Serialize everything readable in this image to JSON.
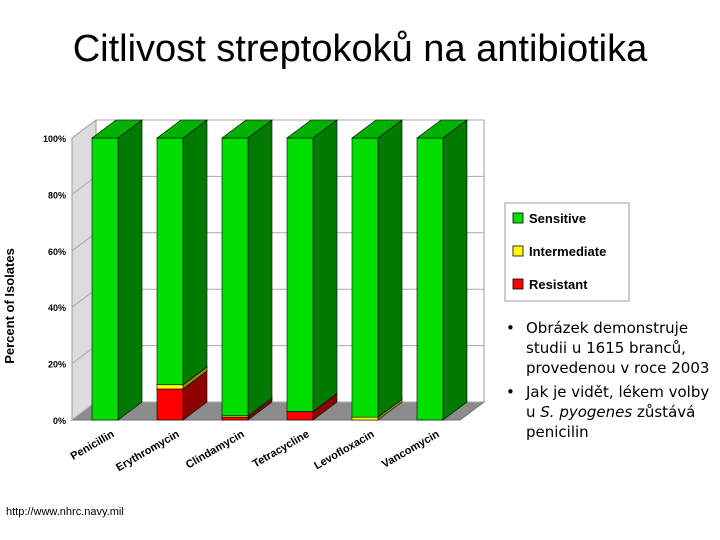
{
  "slide": {
    "title": "Citlivost streptokoků na antibiotika",
    "bullets": [
      {
        "pre": "Obrázek demonstruje studii u 1615 branců, provedenou v roce 2003",
        "em": "",
        "post": ""
      },
      {
        "pre": "Jak je vidět, lékem volby u ",
        "em": "S. pyogenes",
        "post": " zůstává penicilin"
      }
    ],
    "source": "http://www.nhrc.navy.mil"
  },
  "chart_data": {
    "type": "bar",
    "stacked": true,
    "three_d": true,
    "ylabel": "Percent of Isolates",
    "ylim": [
      0,
      100
    ],
    "yticks": [
      "0%",
      "20%",
      "40%",
      "60%",
      "80%",
      "100%"
    ],
    "categories": [
      "Penicillin",
      "Erythromycin",
      "Clindamycin",
      "Tetracycline",
      "Levofloxacin",
      "Vancomycin"
    ],
    "series": [
      {
        "name": "Resistant",
        "color": "#ff0000",
        "values": [
          0,
          11,
          1,
          3,
          0,
          0
        ]
      },
      {
        "name": "Intermediate",
        "color": "#ffff00",
        "values": [
          0,
          1.5,
          0.5,
          0,
          1,
          0
        ]
      },
      {
        "name": "Sensitive",
        "color": "#00dd00",
        "values": [
          100,
          87.5,
          98.5,
          97,
          99,
          100
        ]
      }
    ],
    "legend": {
      "position": "right",
      "order": [
        "Sensitive",
        "Intermediate",
        "Resistant"
      ]
    },
    "grid": true
  }
}
